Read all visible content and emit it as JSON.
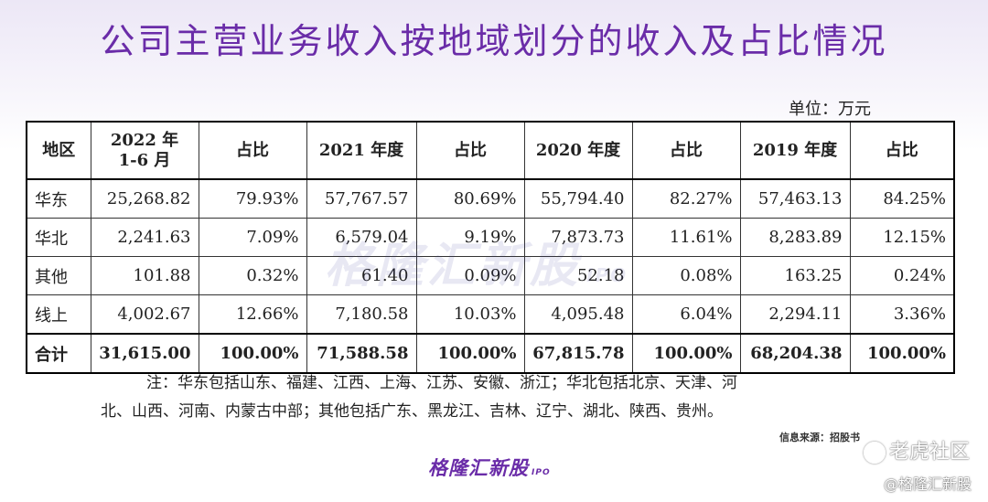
{
  "title": "公司主营业务收入按地域划分的收入及占比情况",
  "unit": "单位：万元",
  "watermark": {
    "text": "格隆汇新股",
    "sub": "IPO"
  },
  "table": {
    "headers": [
      "地区",
      "2022 年\n1-6 月",
      "占比",
      "2021 年度",
      "占比",
      "2020 年度",
      "占比",
      "2019 年度",
      "占比"
    ],
    "rows": [
      [
        "华东",
        "25,268.82",
        "79.93%",
        "57,767.57",
        "80.69%",
        "55,794.40",
        "82.27%",
        "57,463.13",
        "84.25%"
      ],
      [
        "华北",
        "2,241.63",
        "7.09%",
        "6,579.04",
        "9.19%",
        "7,873.73",
        "11.61%",
        "8,283.89",
        "12.15%"
      ],
      [
        "其他",
        "101.88",
        "0.32%",
        "61.40",
        "0.09%",
        "52.18",
        "0.08%",
        "163.25",
        "0.24%"
      ],
      [
        "线上",
        "4,002.67",
        "12.66%",
        "7,180.58",
        "10.03%",
        "4,095.48",
        "6.04%",
        "2,294.11",
        "3.36%"
      ]
    ],
    "total": [
      "合计",
      "31,615.00",
      "100.00%",
      "71,588.58",
      "100.00%",
      "67,815.78",
      "100.00%",
      "68,204.38",
      "100.00%"
    ]
  },
  "notes": {
    "line1": "注：华东包括山东、福建、江西、上海、江苏、安徽、浙江；华北包括北京、天津、河",
    "line2": "北、山西、河南、内蒙古中部；其他包括广东、黑龙江、吉林、辽宁、湖北、陕西、贵州。"
  },
  "source": "信息来源：招股书",
  "brand": {
    "name": "格隆汇新股",
    "sub": "IPO"
  },
  "platform_watermark": {
    "community": "老虎社区",
    "handle": "@格隆汇新股"
  }
}
